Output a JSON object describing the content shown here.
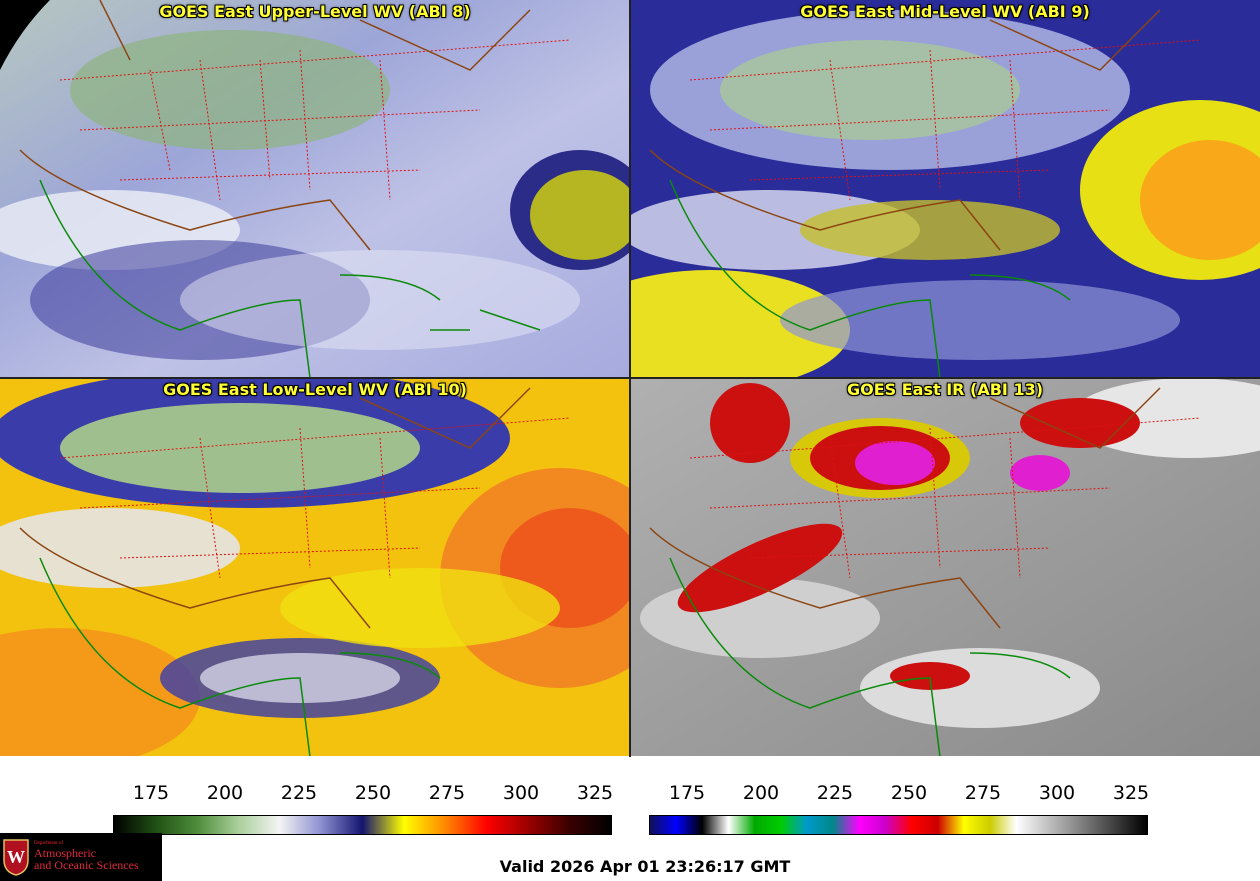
{
  "panels": [
    {
      "id": "wv8",
      "title": "GOES East Upper-Level WV (ABI 8)"
    },
    {
      "id": "wv9",
      "title": "GOES East Mid-Level WV (ABI 9)"
    },
    {
      "id": "wv10",
      "title": "GOES East Low-Level WV (ABI 10)"
    },
    {
      "id": "ir13",
      "title": "GOES East IR (ABI 13)"
    }
  ],
  "colorbar_wv": {
    "ticks": [
      "175",
      "200",
      "225",
      "250",
      "275",
      "300",
      "325"
    ],
    "colors": [
      "#000000",
      "#1f4f14",
      "#4e8c3a",
      "#a9cf9a",
      "#f4f4f4",
      "#8c8fd0",
      "#141470",
      "#ffff00",
      "#ff8800",
      "#ff0000",
      "#9b0000",
      "#3a0000",
      "#000000"
    ]
  },
  "colorbar_ir": {
    "ticks": [
      "175",
      "200",
      "225",
      "250",
      "275",
      "300",
      "325"
    ],
    "colors": [
      "#10105a",
      "#0000ff",
      "#000000",
      "#ffffff",
      "#00aa00",
      "#00cc00",
      "#0099cc",
      "#008888",
      "#ff00ff",
      "#cc00cc",
      "#ff0000",
      "#cc0000",
      "#ffff00",
      "#cccc00",
      "#ffffff",
      "#cccccc",
      "#999999",
      "#666666",
      "#333333",
      "#000000"
    ]
  },
  "logo": {
    "dept": "Department of",
    "line1": "Atmospheric",
    "line2": "and Oceanic Sciences",
    "letter": "W"
  },
  "valid_time": "Valid 2026 Apr 01 23:26:17 GMT"
}
